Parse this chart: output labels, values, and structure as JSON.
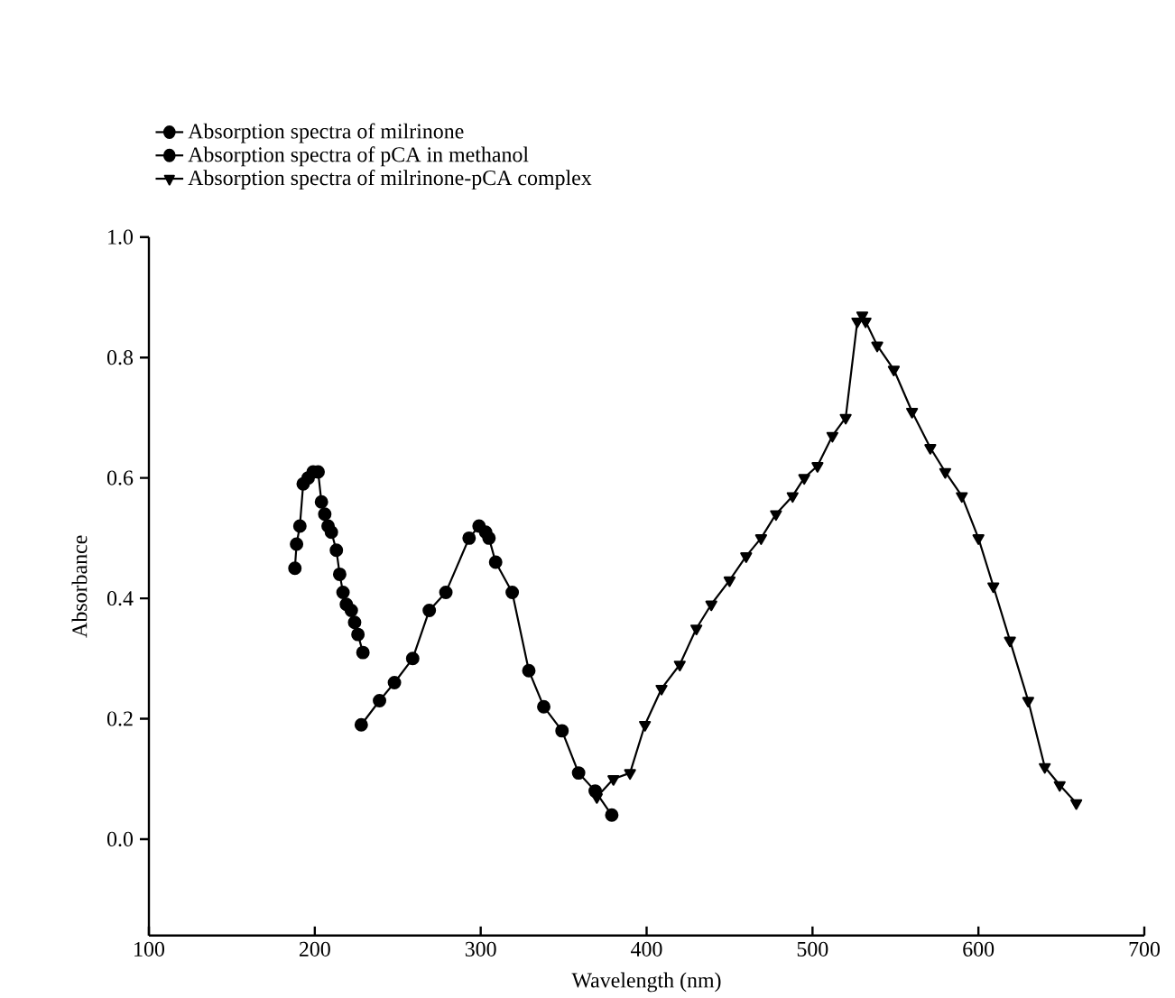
{
  "chart_data": {
    "type": "line",
    "xlabel": "Wavelength (nm)",
    "ylabel": "Absorbance",
    "xlim": [
      100,
      700
    ],
    "xticks": [
      100,
      200,
      300,
      400,
      500,
      600,
      700
    ],
    "ylim": [
      -0.16,
      1.0
    ],
    "yticks": [
      {
        "value": 0.0,
        "label": "0.0"
      },
      0.2,
      0.4,
      0.6,
      0.8,
      {
        "value": 1.0,
        "label": "1.0"
      }
    ],
    "grid": false,
    "legend": "top left",
    "line_style": "solid",
    "series": [
      {
        "name": "Absorption spectra of milrinone",
        "color": "#000000",
        "marker": "circle",
        "x": [
          188,
          189,
          191,
          193,
          196,
          199,
          202,
          204,
          206,
          208,
          210,
          213,
          215,
          217,
          219,
          222,
          224,
          226,
          229
        ],
        "values": [
          0.45,
          0.49,
          0.52,
          0.59,
          0.6,
          0.61,
          0.61,
          0.56,
          0.54,
          0.52,
          0.51,
          0.48,
          0.44,
          0.41,
          0.39,
          0.38,
          0.36,
          0.34,
          0.31
        ]
      },
      {
        "name": "Absorption spectra of pCA in methanol",
        "color": "#000000",
        "marker": "circle",
        "x": [
          228,
          239,
          248,
          259,
          269,
          279,
          293,
          299,
          303,
          305,
          309,
          319,
          329,
          338,
          349,
          359,
          369,
          379
        ],
        "values": [
          0.19,
          0.23,
          0.26,
          0.3,
          0.38,
          0.41,
          0.5,
          0.52,
          0.51,
          0.5,
          0.46,
          0.41,
          0.28,
          0.22,
          0.18,
          0.11,
          0.08,
          0.04
        ]
      },
      {
        "name": "Absorption spectra of milrinone-pCA complex",
        "color": "#000000",
        "marker": "triangle",
        "x": [
          370,
          380,
          390,
          399,
          409,
          420,
          430,
          439,
          450,
          460,
          469,
          478,
          488,
          495,
          503,
          512,
          520,
          527,
          530,
          532,
          539,
          549,
          560,
          571,
          580,
          590,
          600,
          609,
          619,
          630,
          640,
          649,
          659
        ],
        "values": [
          0.07,
          0.1,
          0.11,
          0.19,
          0.25,
          0.29,
          0.35,
          0.39,
          0.43,
          0.47,
          0.5,
          0.54,
          0.57,
          0.6,
          0.62,
          0.67,
          0.7,
          0.86,
          0.87,
          0.86,
          0.82,
          0.78,
          0.71,
          0.65,
          0.61,
          0.57,
          0.5,
          0.42,
          0.33,
          0.23,
          0.12,
          0.09,
          0.06
        ]
      }
    ]
  }
}
